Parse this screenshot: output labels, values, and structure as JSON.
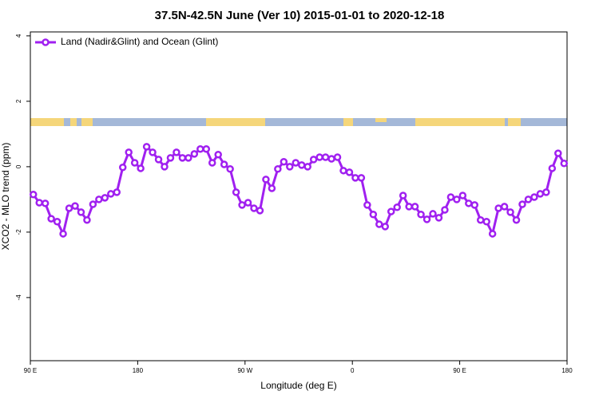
{
  "chart_data": {
    "type": "line",
    "title": "37.5N-42.5N June (Ver 10)   2015-01-01 to 2020-12-18",
    "x_label": "Longitude (deg E)",
    "y_label": "XCO2 - MLO trend (ppm)",
    "x": [
      92.5,
      97.5,
      102.5,
      107.5,
      112.5,
      117.5,
      122.5,
      127.5,
      132.5,
      137.5,
      142.5,
      147.5,
      152.5,
      157.5,
      162.5,
      167.5,
      172.5,
      177.5,
      182.5,
      187.5,
      192.5,
      197.5,
      202.5,
      207.5,
      212.5,
      217.5,
      222.5,
      227.5,
      232.5,
      237.5,
      242.5,
      247.5,
      252.5,
      257.5,
      262.5,
      267.5,
      272.5,
      277.5,
      282.5,
      287.5,
      292.5,
      297.5,
      302.5,
      307.5,
      312.5,
      317.5,
      322.5,
      327.5,
      332.5,
      337.5,
      342.5,
      347.5,
      352.5,
      357.5,
      362.5,
      367.5,
      372.5,
      377.5,
      382.5,
      387.5,
      392.5,
      397.5,
      402.5,
      407.5,
      412.5,
      417.5,
      422.5,
      427.5,
      432.5,
      437.5,
      442.5,
      447.5,
      452.5,
      457.5,
      462.5,
      467.5,
      472.5,
      477.5,
      482.5,
      487.5,
      492.5,
      497.5,
      502.5,
      507.5,
      512.5,
      517.5,
      522.5,
      527.5,
      532.5,
      537.5
    ],
    "series": [
      {
        "name": "Land (Nadir&Glint) and Ocean (Glint)",
        "color": "#a020f0",
        "values": [
          -0.85,
          -1.1,
          -1.12,
          -1.59,
          -1.68,
          -2.05,
          -1.27,
          -1.2,
          -1.39,
          -1.63,
          -1.15,
          -1.0,
          -0.95,
          -0.83,
          -0.78,
          -0.02,
          0.44,
          0.12,
          -0.05,
          0.61,
          0.44,
          0.22,
          0.0,
          0.27,
          0.44,
          0.27,
          0.27,
          0.39,
          0.54,
          0.54,
          0.12,
          0.37,
          0.07,
          -0.07,
          -0.78,
          -1.17,
          -1.1,
          -1.27,
          -1.34,
          -0.39,
          -0.66,
          -0.07,
          0.15,
          0.0,
          0.12,
          0.05,
          0.0,
          0.22,
          0.29,
          0.29,
          0.24,
          0.29,
          -0.12,
          -0.17,
          -0.34,
          -0.34,
          -1.17,
          -1.46,
          -1.76,
          -1.83,
          -1.37,
          -1.24,
          -0.88,
          -1.22,
          -1.22,
          -1.46,
          -1.61,
          -1.44,
          -1.56,
          -1.32,
          -0.93,
          -1.0,
          -0.88,
          -1.12,
          -1.17,
          -1.63,
          -1.68,
          -2.05,
          -1.27,
          -1.22,
          -1.39,
          -1.63,
          -1.15,
          -1.0,
          -0.93,
          -0.83,
          -0.78,
          -0.05,
          0.41,
          0.1
        ]
      }
    ],
    "xlim": [
      90,
      540
    ],
    "xticks": [
      {
        "value": 90,
        "label": "90 E"
      },
      180,
      {
        "value": 270,
        "label": "90 W"
      },
      {
        "value": 360,
        "label": "0"
      },
      {
        "value": 450,
        "label": "90 E"
      },
      {
        "value": 540,
        "label": "180"
      }
    ],
    "ylim": [
      -5.93,
      4.12
    ],
    "yticks": [
      -4,
      -2,
      0,
      2,
      4
    ],
    "legend": "top-left"
  }
}
